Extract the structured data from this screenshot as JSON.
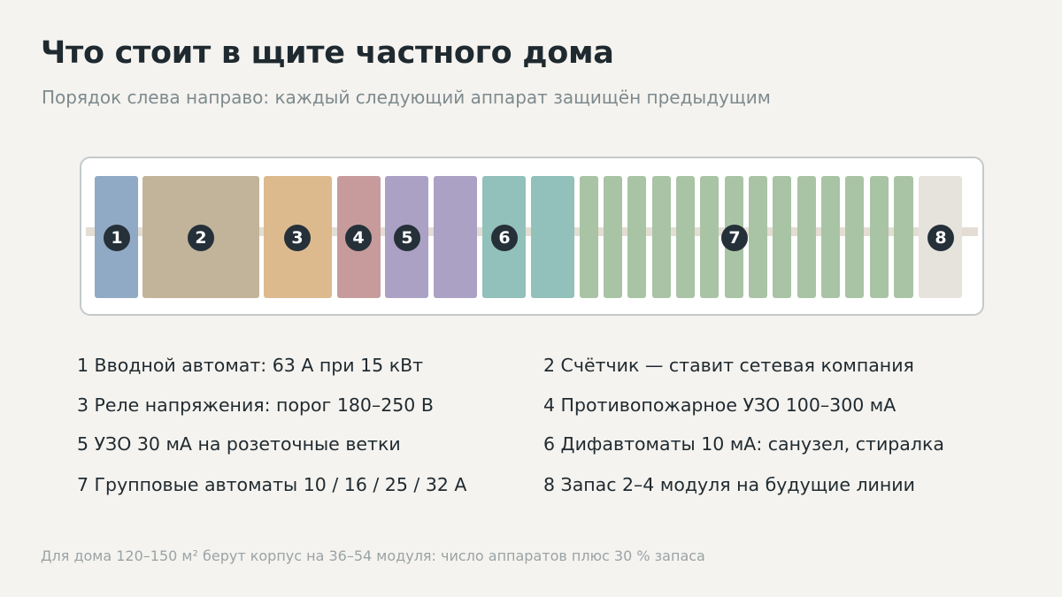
{
  "title": "Что стоит в щите частного дома",
  "subtitle": "Порядок слева направо: каждый следующий аппарат защищён предыдущим",
  "modules": [
    {
      "group": 1,
      "color": "#90a9c4"
    },
    {
      "group": 2,
      "color": "#c1b49a"
    },
    {
      "group": 3,
      "color": "#ddba8d"
    },
    {
      "group": 4,
      "color": "#c79b9b"
    },
    {
      "group": 5,
      "color": "#aba1c4"
    },
    {
      "group": 5,
      "color": "#aba1c4"
    },
    {
      "group": 6,
      "color": "#92c0ba"
    },
    {
      "group": 6,
      "color": "#92c0ba"
    },
    {
      "group": 7,
      "color": "#a9c4a4"
    },
    {
      "group": 7,
      "color": "#a9c4a4"
    },
    {
      "group": 7,
      "color": "#a9c4a4"
    },
    {
      "group": 7,
      "color": "#a9c4a4"
    },
    {
      "group": 7,
      "color": "#a9c4a4"
    },
    {
      "group": 7,
      "color": "#a9c4a4"
    },
    {
      "group": 7,
      "color": "#a9c4a4"
    },
    {
      "group": 7,
      "color": "#a9c4a4"
    },
    {
      "group": 7,
      "color": "#a9c4a4"
    },
    {
      "group": 7,
      "color": "#a9c4a4"
    },
    {
      "group": 7,
      "color": "#a9c4a4"
    },
    {
      "group": 7,
      "color": "#a9c4a4"
    },
    {
      "group": 7,
      "color": "#a9c4a4"
    },
    {
      "group": 8,
      "color": "#e6e3dd"
    }
  ],
  "badges": [
    "1",
    "2",
    "3",
    "4",
    "5",
    "6",
    "7",
    "8"
  ],
  "legend": [
    "1 Вводной автомат: 63 А при 15 кВт",
    "2 Счётчик — ставит сетевая компания",
    "3 Реле напряжения: порог 180–250 В",
    "4 Противопожарное УЗО 100–300 мА",
    "5 УЗО 30 мА на розеточные ветки",
    "6 Дифавтоматы 10 мА: санузел, стиралка",
    "7 Групповые автоматы 10 / 16 / 25 / 32 А",
    "8 Запас 2–4 модуля на будущие линии"
  ],
  "footnote": "Для дома 120–150 м² берут корпус на 36–54 модуля: число аппаратов плюс 30 % запаса"
}
